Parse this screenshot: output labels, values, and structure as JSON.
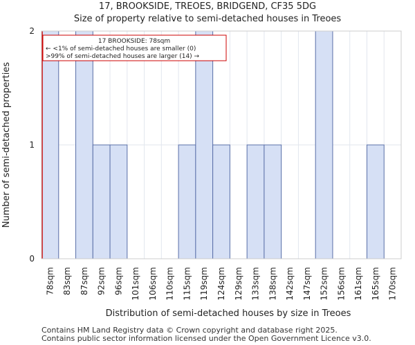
{
  "chart_data": {
    "type": "bar",
    "title": "17, BROOKSIDE, TREOES, BRIDGEND, CF35 5DG",
    "subtitle": "Size of property relative to semi-detached houses in Treoes",
    "xlabel": "Distribution of semi-detached houses by size in Treoes",
    "ylabel": "Number of semi-detached properties",
    "categories": [
      "78sqm",
      "83sqm",
      "87sqm",
      "92sqm",
      "96sqm",
      "101sqm",
      "106sqm",
      "110sqm",
      "115sqm",
      "119sqm",
      "124sqm",
      "129sqm",
      "133sqm",
      "138sqm",
      "142sqm",
      "147sqm",
      "152sqm",
      "156sqm",
      "161sqm",
      "165sqm",
      "170sqm"
    ],
    "values": [
      2,
      0,
      2,
      1,
      1,
      0,
      0,
      0,
      1,
      2,
      1,
      0,
      1,
      1,
      0,
      0,
      2,
      0,
      0,
      1,
      0
    ],
    "ylim": [
      0,
      2
    ],
    "yticks": [
      0,
      1,
      2
    ],
    "grid": true,
    "bar_color": "#d6e0f5",
    "bar_edge_color": "#5a6fa8",
    "marker_color": "#cc0000",
    "marker_category": "78sqm",
    "annotation": {
      "line1": "17 BROOKSIDE: 78sqm",
      "line2": "← <1% of semi-detached houses are smaller (0)",
      "line3": ">99% of semi-detached houses are larger (14) →"
    }
  },
  "footer": {
    "line1": "Contains HM Land Registry data © Crown copyright and database right 2025.",
    "line2": "Contains public sector information licensed under the Open Government Licence v3.0."
  }
}
